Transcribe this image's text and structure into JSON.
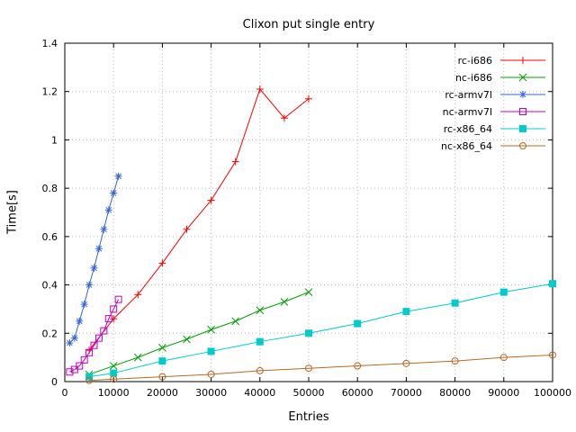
{
  "chart_data": {
    "type": "line",
    "title": "Clixon put single entry",
    "xlabel": "Entries",
    "ylabel": "Time[s]",
    "xlim": [
      0,
      100000
    ],
    "ylim": [
      0,
      1.4
    ],
    "xtick_step": 10000,
    "ytick_step": 0.2,
    "grid": true,
    "grid_color": "#b8b8b8",
    "axis_color": "#000000",
    "background": "#ffffff",
    "legend_position": "top-right",
    "series": [
      {
        "name": "rc-i686",
        "color": "#ff0000",
        "marker": "plus",
        "x": [
          5000,
          10000,
          15000,
          20000,
          25000,
          30000,
          35000,
          40000,
          45000,
          50000
        ],
        "y": [
          0.13,
          0.26,
          0.36,
          0.49,
          0.63,
          0.75,
          0.91,
          1.21,
          1.09,
          1.17
        ]
      },
      {
        "name": "nc-i686",
        "color": "#00a000",
        "marker": "cross",
        "x": [
          5000,
          10000,
          15000,
          20000,
          25000,
          30000,
          35000,
          40000,
          45000,
          50000
        ],
        "y": [
          0.03,
          0.065,
          0.1,
          0.14,
          0.175,
          0.215,
          0.25,
          0.295,
          0.33,
          0.37
        ]
      },
      {
        "name": "rc-armv7l",
        "color": "#3465d4",
        "marker": "asterisk",
        "x": [
          1000,
          2000,
          3000,
          4000,
          5000,
          6000,
          7000,
          8000,
          9000,
          10000,
          11000
        ],
        "y": [
          0.16,
          0.18,
          0.25,
          0.32,
          0.4,
          0.47,
          0.55,
          0.63,
          0.71,
          0.78,
          0.85
        ]
      },
      {
        "name": "nc-armv7l",
        "color": "#c000c0",
        "marker": "square-open",
        "x": [
          1000,
          2000,
          3000,
          4000,
          5000,
          6000,
          7000,
          8000,
          9000,
          10000,
          11000
        ],
        "y": [
          0.04,
          0.05,
          0.065,
          0.09,
          0.12,
          0.15,
          0.18,
          0.21,
          0.26,
          0.3,
          0.34
        ]
      },
      {
        "name": "rc-x86_64",
        "color": "#00cccc",
        "marker": "square-filled",
        "x": [
          5000,
          10000,
          20000,
          30000,
          40000,
          50000,
          60000,
          70000,
          80000,
          90000,
          100000
        ],
        "y": [
          0.02,
          0.035,
          0.085,
          0.125,
          0.165,
          0.2,
          0.24,
          0.29,
          0.325,
          0.37,
          0.405
        ]
      },
      {
        "name": "nc-x86_64",
        "color": "#b86820",
        "marker": "circle-open",
        "x": [
          5000,
          10000,
          20000,
          30000,
          40000,
          50000,
          60000,
          70000,
          80000,
          90000,
          100000
        ],
        "y": [
          0.005,
          0.01,
          0.02,
          0.03,
          0.045,
          0.055,
          0.065,
          0.075,
          0.085,
          0.1,
          0.11
        ]
      }
    ]
  }
}
